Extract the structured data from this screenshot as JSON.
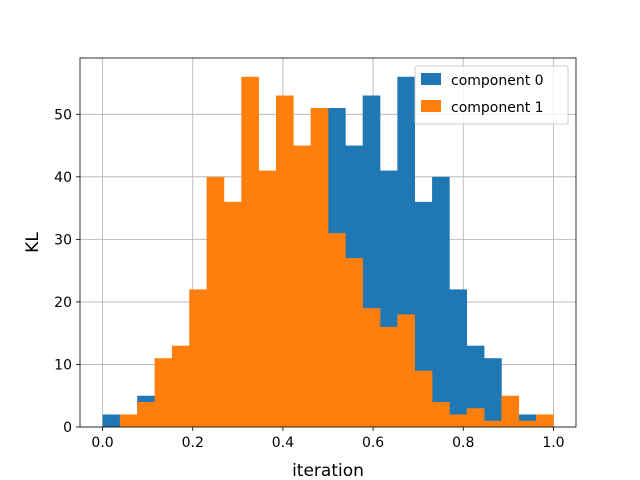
{
  "chart_data": {
    "type": "bar",
    "subtype": "histogram-overlay",
    "title": "",
    "xlabel": "iteration",
    "ylabel": "KL",
    "xlim": [
      -0.05,
      1.05
    ],
    "ylim": [
      0,
      59
    ],
    "x_ticks": [
      0.0,
      0.2,
      0.4,
      0.6,
      0.8,
      1.0
    ],
    "x_tick_labels": [
      "0.0",
      "0.2",
      "0.4",
      "0.6",
      "0.8",
      "1.0"
    ],
    "y_ticks": [
      0,
      10,
      20,
      30,
      40,
      50
    ],
    "y_tick_labels": [
      "0",
      "10",
      "20",
      "30",
      "40",
      "50"
    ],
    "grid": true,
    "legend_position": "top-right",
    "bin_edges": [
      0.0,
      0.0385,
      0.0769,
      0.1154,
      0.1538,
      0.1923,
      0.2308,
      0.2692,
      0.3077,
      0.3462,
      0.3846,
      0.4231,
      0.4615,
      0.5,
      0.5385,
      0.5769,
      0.6154,
      0.6538,
      0.6923,
      0.7308,
      0.7692,
      0.8077,
      0.8462,
      0.8846,
      0.9231,
      0.9615,
      1.0
    ],
    "series": [
      {
        "name": "component 0",
        "color": "#1f77b4",
        "values": [
          2,
          0,
          5,
          0,
          0,
          0,
          0,
          0,
          0,
          0,
          0,
          0,
          0,
          51,
          45,
          53,
          41,
          56,
          36,
          40,
          22,
          13,
          11,
          0,
          2,
          1
        ]
      },
      {
        "name": "component 1",
        "color": "#ff7f0e",
        "values": [
          0,
          2,
          4,
          11,
          13,
          22,
          40,
          36,
          56,
          41,
          53,
          45,
          51,
          31,
          27,
          19,
          16,
          18,
          9,
          4,
          2,
          3,
          1,
          5,
          1,
          2
        ]
      }
    ]
  }
}
